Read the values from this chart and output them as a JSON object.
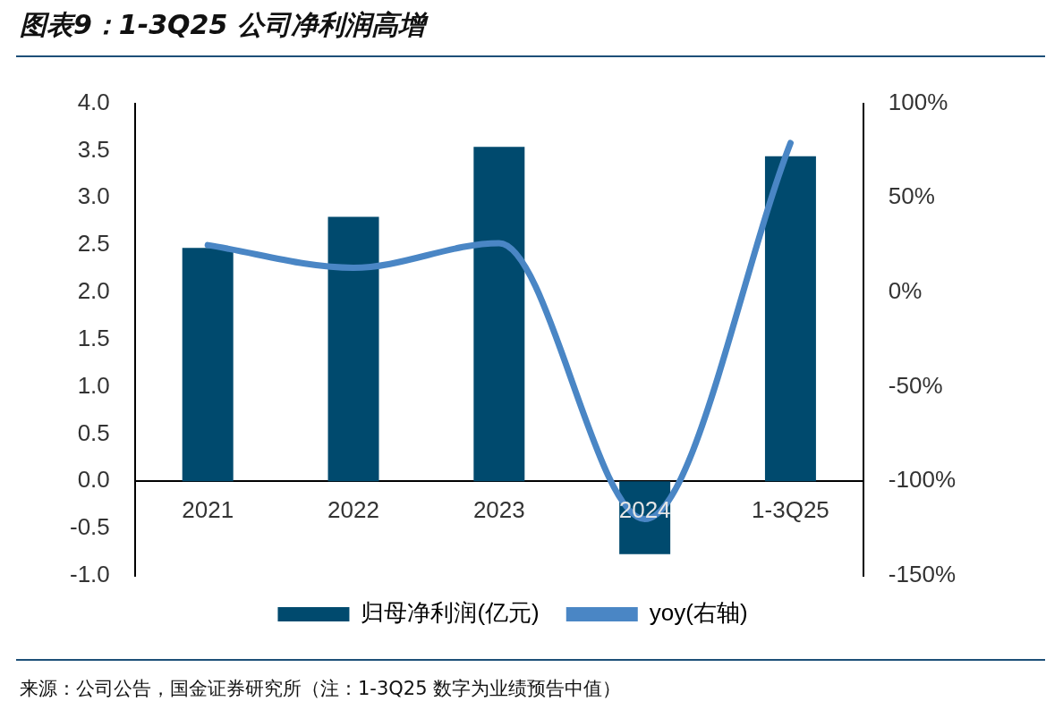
{
  "chart_data": {
    "type": "bar",
    "title": "图表9：1-3Q25 公司净利润高增",
    "categories": [
      "2021",
      "2022",
      "2023",
      "2024",
      "1-3Q25"
    ],
    "series": [
      {
        "name": "归母净利润(亿元)",
        "color": "#004a6e",
        "values": [
          2.47,
          2.8,
          3.54,
          -0.77,
          3.44
        ]
      },
      {
        "name": "yoy(右轴)",
        "type": "line",
        "axis": "y2",
        "color": "#4a86c5",
        "values": [
          25,
          13,
          26,
          -120,
          79
        ]
      }
    ],
    "ylim": [
      -1,
      4
    ],
    "yticks": [
      {
        "value": -1,
        "label": "-1.0"
      },
      {
        "value": -0.5,
        "label": "-0.5"
      },
      {
        "value": 0,
        "label": "0.0"
      },
      {
        "value": 0.5,
        "label": "0.5"
      },
      {
        "value": 1,
        "label": "1.0"
      },
      {
        "value": 1.5,
        "label": "1.5"
      },
      {
        "value": 2,
        "label": "2.0"
      },
      {
        "value": 2.5,
        "label": "2.5"
      },
      {
        "value": 3,
        "label": "3.0"
      },
      {
        "value": 3.5,
        "label": "3.5"
      },
      {
        "value": 4,
        "label": "4.0"
      }
    ],
    "y2lim": [
      -150,
      100
    ],
    "y2ticks": [
      {
        "value": -150,
        "label": "-150%"
      },
      {
        "value": -100,
        "label": "-100%"
      },
      {
        "value": -50,
        "label": "-50%"
      },
      {
        "value": 0,
        "label": "0%"
      },
      {
        "value": 50,
        "label": "50%"
      },
      {
        "value": 100,
        "label": "100%"
      }
    ],
    "grid": false,
    "legend": "bottom",
    "marker": "none",
    "annotations": [
      "来源：公司公告，国金证券研究所（注：1-3Q25 数字为业绩预告中值）"
    ]
  }
}
